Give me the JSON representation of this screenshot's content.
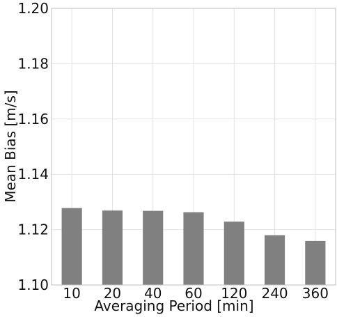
{
  "chart_data": {
    "type": "bar",
    "categories": [
      "10",
      "20",
      "40",
      "60",
      "120",
      "240",
      "360"
    ],
    "values": [
      1.1278,
      1.1269,
      1.1268,
      1.1263,
      1.1229,
      1.118,
      1.1159
    ],
    "xlabel": "Averaging Period [min]",
    "ylabel": "Mean Bias [m/s]",
    "ylim": [
      1.1,
      1.2
    ],
    "yticks": [
      "1.10",
      "1.12",
      "1.14",
      "1.16",
      "1.18",
      "1.20"
    ],
    "grid": true,
    "bar_color": "#808080",
    "grid_color": "#e3e3e3",
    "axis_color": "#bfbfbf"
  }
}
